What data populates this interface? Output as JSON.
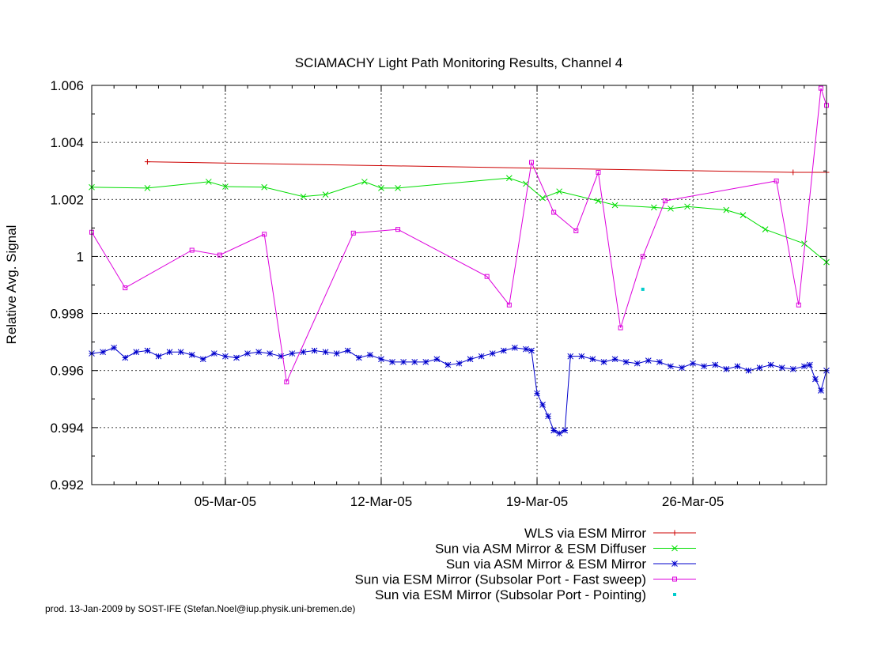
{
  "chart_data": {
    "type": "line",
    "title": "SCIAMACHY Light Path Monitoring Results, Channel 4",
    "xlabel": "",
    "ylabel": "Relative Avg. Signal",
    "xlim": [
      "2005-02-27",
      "2005-04-01"
    ],
    "ylim": [
      0.992,
      1.006
    ],
    "x_ticks": [
      {
        "date": "2005-03-05",
        "label": "05-Mar-05"
      },
      {
        "date": "2005-03-12",
        "label": "12-Mar-05"
      },
      {
        "date": "2005-03-19",
        "label": "19-Mar-05"
      },
      {
        "date": "2005-03-26",
        "label": "26-Mar-05"
      }
    ],
    "y_ticks": [
      {
        "value": 0.992,
        "label": "0.992"
      },
      {
        "value": 0.994,
        "label": "0.994"
      },
      {
        "value": 0.996,
        "label": "0.996"
      },
      {
        "value": 0.998,
        "label": "0.998"
      },
      {
        "value": 1.0,
        "label": "1"
      },
      {
        "value": 1.002,
        "label": "1.002"
      },
      {
        "value": 1.004,
        "label": "1.004"
      },
      {
        "value": 1.006,
        "label": "1.006"
      }
    ],
    "grid": true,
    "legend_position": "bottom-right",
    "series": [
      {
        "name": "WLS via ESM Mirror",
        "color": "#cc0000",
        "marker": "plus",
        "x": [
          "2005-03-01 12:00",
          "2005-03-30 12:00",
          "2005-04-01 00:00"
        ],
        "y": [
          1.00332,
          1.00295,
          1.00295
        ]
      },
      {
        "name": "Sun via ASM Mirror & ESM Diffuser",
        "color": "#00dd00",
        "marker": "cross",
        "x": [
          "2005-02-27 00:00",
          "2005-03-01 12:00",
          "2005-03-04 06:00",
          "2005-03-05 00:00",
          "2005-03-06 18:00",
          "2005-03-08 12:00",
          "2005-03-09 12:00",
          "2005-03-11 06:00",
          "2005-03-12 00:00",
          "2005-03-12 18:00",
          "2005-03-17 18:00",
          "2005-03-18 12:00",
          "2005-03-19 06:00",
          "2005-03-20 00:00",
          "2005-03-21 18:00",
          "2005-03-22 12:00",
          "2005-03-24 06:00",
          "2005-03-25 00:00",
          "2005-03-25 18:00",
          "2005-03-27 12:00",
          "2005-03-28 06:00",
          "2005-03-29 06:00",
          "2005-03-31 00:00",
          "2005-04-01 00:00"
        ],
        "y": [
          1.00243,
          1.0024,
          1.00262,
          1.00245,
          1.00243,
          1.0021,
          1.00217,
          1.00262,
          1.0024,
          1.0024,
          1.00275,
          1.00255,
          1.00205,
          1.00228,
          1.00195,
          1.0018,
          1.00172,
          1.00168,
          1.00175,
          1.00163,
          1.00145,
          1.00095,
          1.00045,
          0.9998
        ]
      },
      {
        "name": "Sun via ASM Mirror & ESM Mirror",
        "color": "#0000cc",
        "marker": "star",
        "x": [
          "2005-02-27 00:00",
          "2005-02-27 12:00",
          "2005-02-28 00:00",
          "2005-02-28 12:00",
          "2005-03-01 00:00",
          "2005-03-01 12:00",
          "2005-03-02 00:00",
          "2005-03-02 12:00",
          "2005-03-03 00:00",
          "2005-03-03 12:00",
          "2005-03-04 00:00",
          "2005-03-04 12:00",
          "2005-03-05 00:00",
          "2005-03-05 12:00",
          "2005-03-06 00:00",
          "2005-03-06 12:00",
          "2005-03-07 00:00",
          "2005-03-07 12:00",
          "2005-03-08 00:00",
          "2005-03-08 12:00",
          "2005-03-09 00:00",
          "2005-03-09 12:00",
          "2005-03-10 00:00",
          "2005-03-10 12:00",
          "2005-03-11 00:00",
          "2005-03-11 12:00",
          "2005-03-12 00:00",
          "2005-03-12 12:00",
          "2005-03-13 00:00",
          "2005-03-13 12:00",
          "2005-03-14 00:00",
          "2005-03-14 12:00",
          "2005-03-15 00:00",
          "2005-03-15 12:00",
          "2005-03-16 00:00",
          "2005-03-16 12:00",
          "2005-03-17 00:00",
          "2005-03-17 12:00",
          "2005-03-18 00:00",
          "2005-03-18 12:00",
          "2005-03-18 18:00",
          "2005-03-19 00:00",
          "2005-03-19 06:00",
          "2005-03-19 12:00",
          "2005-03-19 18:00",
          "2005-03-20 00:00",
          "2005-03-20 06:00",
          "2005-03-20 12:00",
          "2005-03-21 00:00",
          "2005-03-21 12:00",
          "2005-03-22 00:00",
          "2005-03-22 12:00",
          "2005-03-23 00:00",
          "2005-03-23 12:00",
          "2005-03-24 00:00",
          "2005-03-24 12:00",
          "2005-03-25 00:00",
          "2005-03-25 12:00",
          "2005-03-26 00:00",
          "2005-03-26 12:00",
          "2005-03-27 00:00",
          "2005-03-27 12:00",
          "2005-03-28 00:00",
          "2005-03-28 12:00",
          "2005-03-29 00:00",
          "2005-03-29 12:00",
          "2005-03-30 00:00",
          "2005-03-30 12:00",
          "2005-03-31 00:00",
          "2005-03-31 06:00",
          "2005-03-31 12:00",
          "2005-03-31 18:00",
          "2005-04-01 00:00"
        ],
        "y": [
          0.9966,
          0.99665,
          0.9968,
          0.99645,
          0.99665,
          0.9967,
          0.9965,
          0.99665,
          0.99665,
          0.99655,
          0.9964,
          0.9966,
          0.9965,
          0.99645,
          0.9966,
          0.99665,
          0.9966,
          0.9965,
          0.9966,
          0.99665,
          0.9967,
          0.99665,
          0.9966,
          0.9967,
          0.99645,
          0.99655,
          0.9964,
          0.9963,
          0.9963,
          0.9963,
          0.9963,
          0.9964,
          0.9962,
          0.99625,
          0.9964,
          0.9965,
          0.9966,
          0.9967,
          0.9968,
          0.99675,
          0.9967,
          0.9952,
          0.9948,
          0.9944,
          0.9939,
          0.9938,
          0.9939,
          0.9965,
          0.9965,
          0.9964,
          0.9963,
          0.9964,
          0.9963,
          0.99625,
          0.99635,
          0.9963,
          0.99615,
          0.9961,
          0.99625,
          0.99615,
          0.9962,
          0.99605,
          0.99615,
          0.996,
          0.9961,
          0.9962,
          0.9961,
          0.99605,
          0.99615,
          0.9962,
          0.9957,
          0.9953,
          0.996
        ]
      },
      {
        "name": "Sun via ESM Mirror (Subsolar Port - Fast sweep)",
        "color": "#dd00dd",
        "marker": "square",
        "x": [
          "2005-02-27 00:00",
          "2005-02-28 12:00",
          "2005-03-03 12:00",
          "2005-03-04 18:00",
          "2005-03-06 18:00",
          "2005-03-07 18:00",
          "2005-03-10 18:00",
          "2005-03-12 18:00",
          "2005-03-16 18:00",
          "2005-03-17 18:00",
          "2005-03-18 18:00",
          "2005-03-19 18:00",
          "2005-03-20 18:00",
          "2005-03-21 18:00",
          "2005-03-22 18:00",
          "2005-03-23 18:00",
          "2005-03-24 18:00",
          "2005-03-29 18:00",
          "2005-03-30 18:00",
          "2005-03-31 18:00",
          "2005-04-01 00:00"
        ],
        "y": [
          1.00085,
          0.9989,
          1.00022,
          1.00005,
          1.00078,
          0.9956,
          1.00082,
          1.00095,
          0.9993,
          0.9983,
          1.0033,
          1.00155,
          1.0009,
          1.00295,
          0.9975,
          1.0,
          1.00195,
          1.00265,
          0.9983,
          1.0059,
          1.0053
        ]
      },
      {
        "name": "Sun via ESM Mirror (Subsolar Port - Pointing)",
        "color": "#00cccc",
        "marker": "dot",
        "x": [
          "2005-03-23 18:00"
        ],
        "y": [
          0.99885
        ]
      }
    ]
  },
  "footer": "prod. 13-Jan-2009 by SOST-IFE (Stefan.Noel@iup.physik.uni-bremen.de)"
}
